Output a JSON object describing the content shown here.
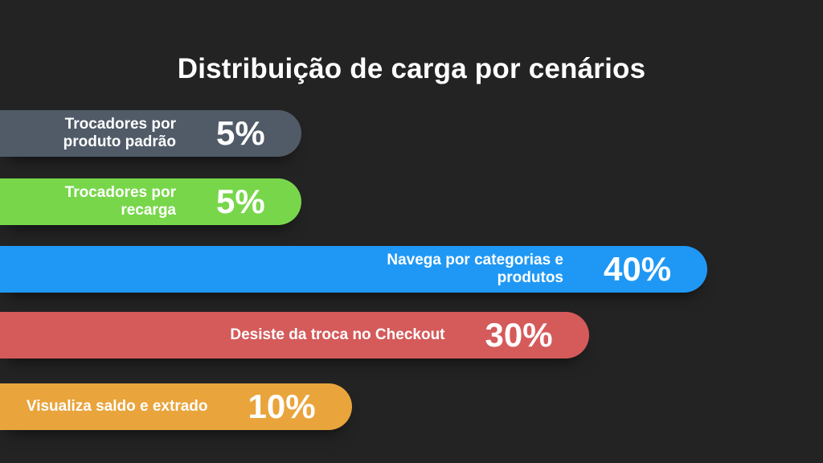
{
  "title": "Distribuição de carga por cenários",
  "chart_data": {
    "type": "bar",
    "orientation": "horizontal",
    "title": "Distribuição de carga por cenários",
    "categories": [
      "Trocadores por produto padrão",
      "Trocadores por recarga",
      "Navega por categorias e produtos",
      "Desiste da troca no Checkout",
      "Visualiza saldo e extrado"
    ],
    "values": [
      5,
      5,
      40,
      30,
      10
    ],
    "value_labels": [
      "5%",
      "5%",
      "40%",
      "30%",
      "10%"
    ],
    "label_lines": [
      [
        "Trocadores por",
        "produto padrão"
      ],
      [
        "Trocadores por",
        "recarga"
      ],
      [
        "Navega por categorias e",
        "produtos"
      ],
      [
        "Desiste da troca no Checkout"
      ],
      [
        "Visualiza saldo e extrado"
      ]
    ],
    "colors": [
      "#505b67",
      "#78d64b",
      "#1f98f5",
      "#d55a5a",
      "#e9a43c"
    ],
    "unit": "%",
    "grid": false,
    "legend": "none"
  }
}
